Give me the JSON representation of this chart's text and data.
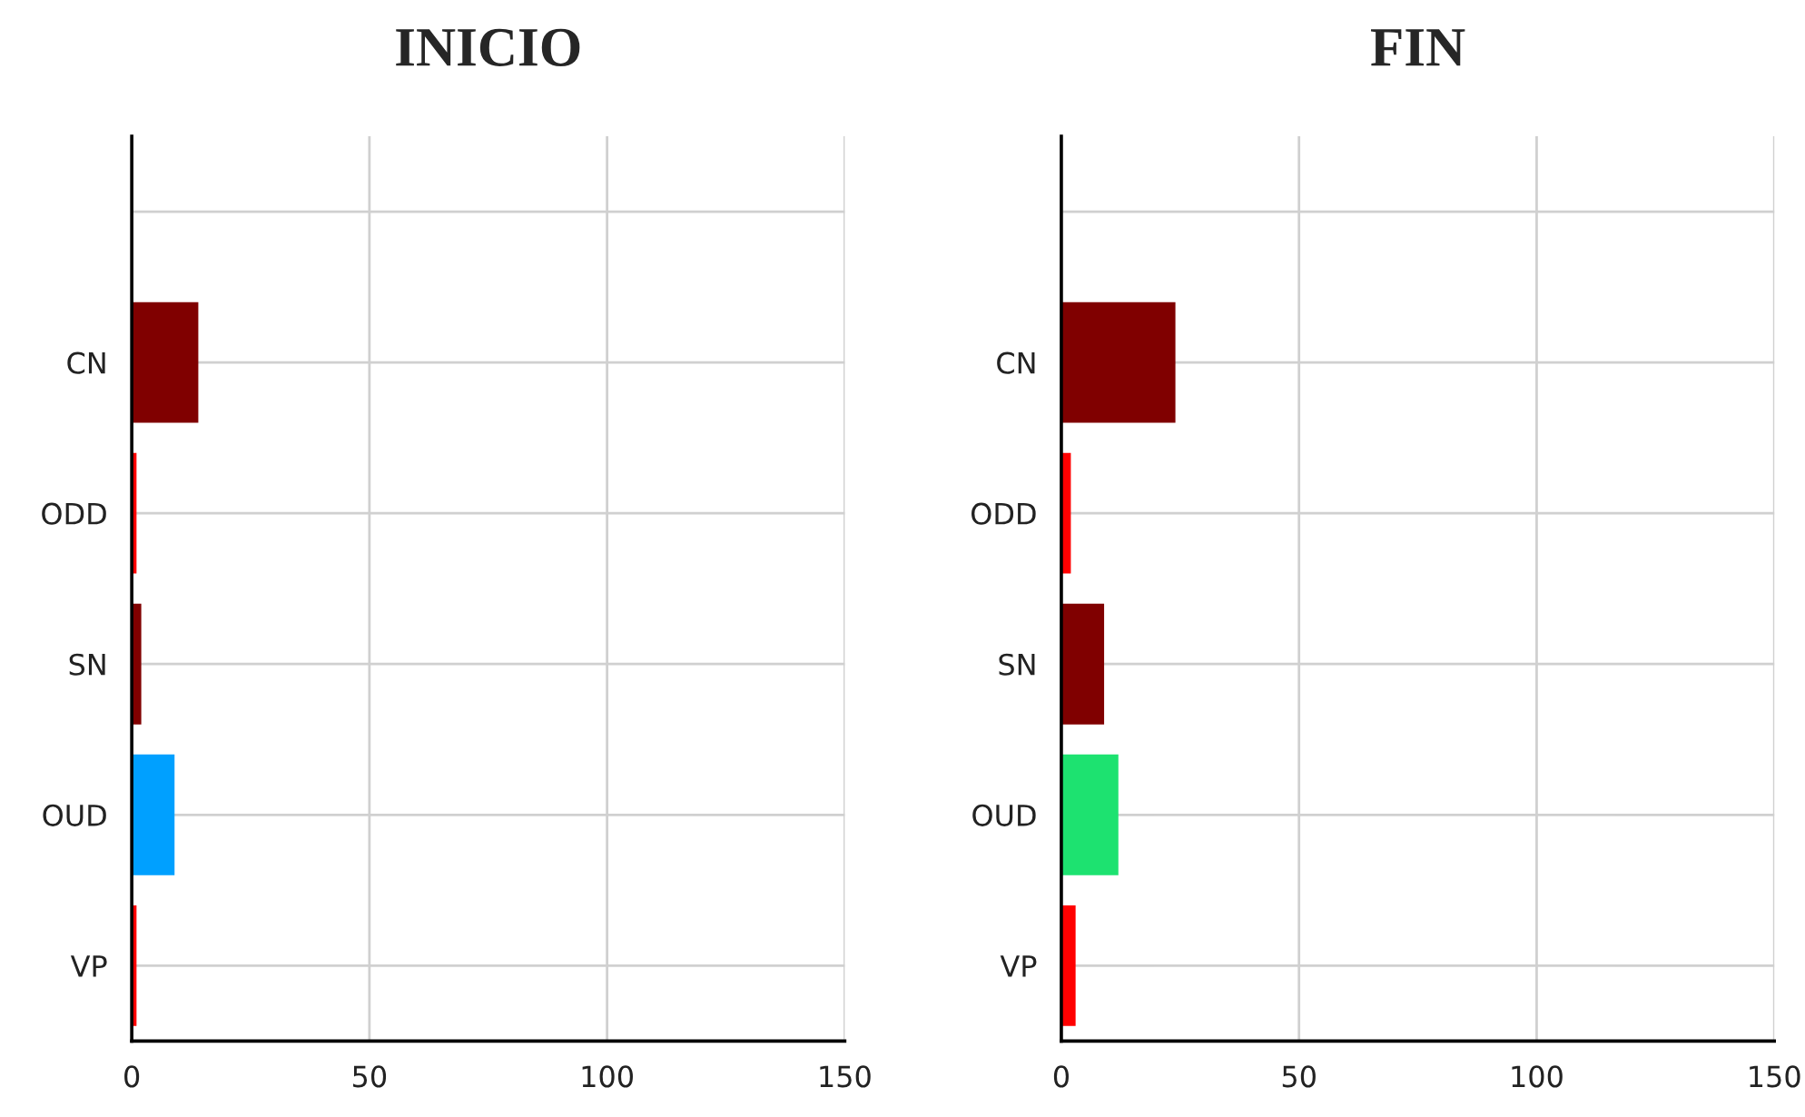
{
  "chart_data": [
    {
      "type": "bar",
      "title": "INICIO",
      "orientation": "horizontal",
      "categories": [
        null,
        "CN",
        "ODD",
        "SN",
        "OUD",
        "VP"
      ],
      "values": [
        null,
        14,
        1,
        2,
        9,
        1
      ],
      "colors": [
        "#800000",
        "#800000",
        "#ff0000",
        "#800000",
        "#00a0ff",
        "#ff0000"
      ],
      "xlim": [
        0,
        150
      ],
      "xticks": [
        0,
        50,
        100,
        150
      ],
      "grid": true
    },
    {
      "type": "bar",
      "title": "FIN",
      "orientation": "horizontal",
      "categories": [
        null,
        "CN",
        "ODD",
        "SN",
        "OUD",
        "VP"
      ],
      "values": [
        null,
        24,
        2,
        9,
        12,
        3
      ],
      "colors": [
        "#800000",
        "#800000",
        "#ff0000",
        "#800000",
        "#1de270",
        "#ff0000"
      ],
      "xlim": [
        0,
        150
      ],
      "xticks": [
        0,
        50,
        100,
        150
      ],
      "grid": true
    }
  ]
}
